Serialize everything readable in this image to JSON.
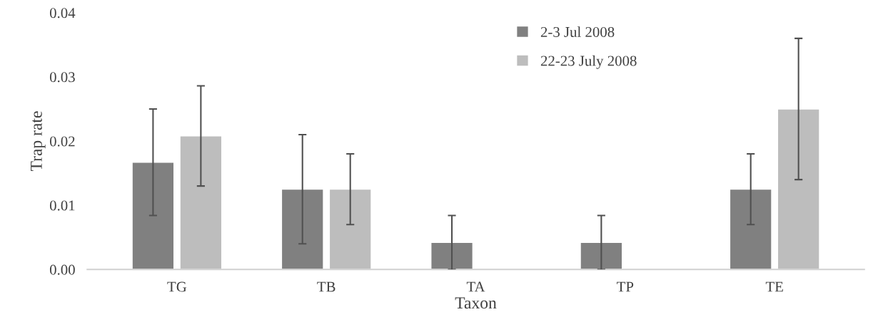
{
  "chart_data": {
    "type": "bar",
    "xlabel": "Taxon",
    "ylabel": "Trap rate",
    "categories": [
      "TG",
      "TB",
      "TA",
      "TP",
      "TE"
    ],
    "series": [
      {
        "name": "2-3 Jul 2008",
        "color": "#808080",
        "values": [
          0.0167,
          0.0125,
          0.0042,
          0.0042,
          0.0125
        ],
        "errors": [
          0.0083,
          0.0085,
          0.0042,
          0.0042,
          0.0055
        ]
      },
      {
        "name": "22-23 July 2008",
        "color": "#bdbdbd",
        "values": [
          0.0208,
          0.0125,
          null,
          null,
          0.025
        ],
        "errors": [
          0.0078,
          0.0055,
          null,
          null,
          0.011
        ]
      }
    ],
    "ylim": [
      0,
      0.04
    ],
    "yticks": [
      {
        "value": 0,
        "label": "0.00"
      },
      0.01,
      0.02,
      0.03,
      0.04
    ],
    "grid": false,
    "legend": "top"
  }
}
